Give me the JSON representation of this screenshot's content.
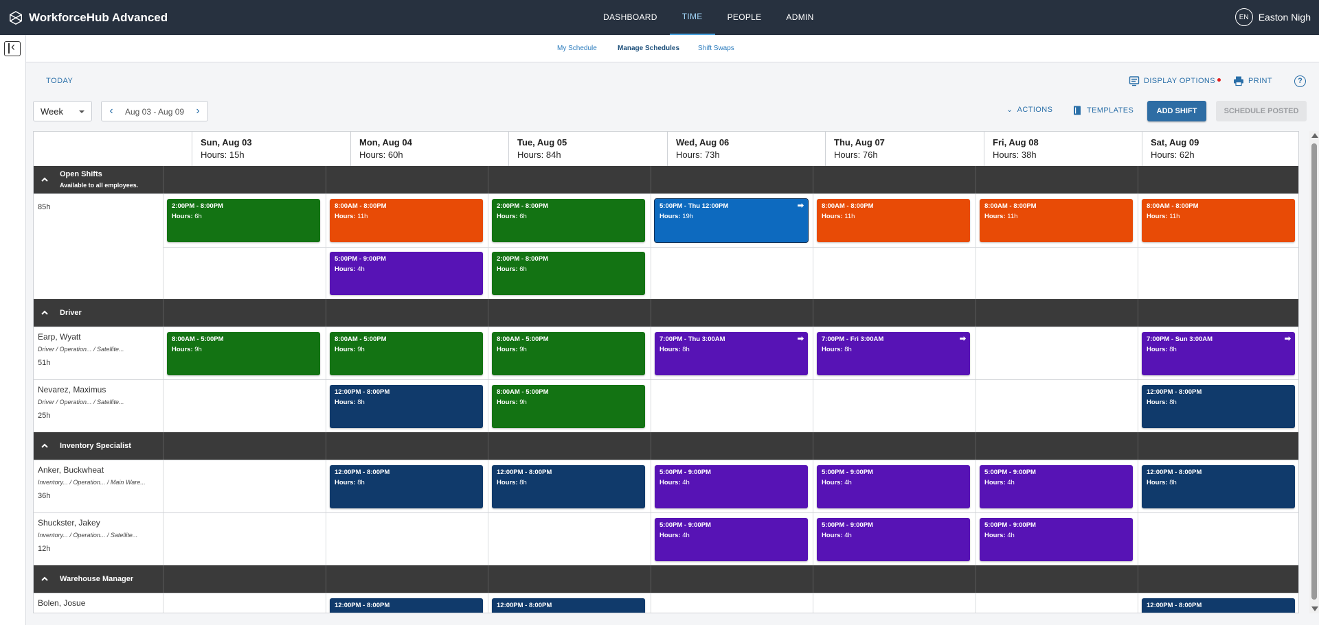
{
  "app": {
    "title": "WorkforceHub Advanced"
  },
  "topnav": [
    {
      "label": "DASHBOARD",
      "active": false
    },
    {
      "label": "TIME",
      "active": true
    },
    {
      "label": "PEOPLE",
      "active": false
    },
    {
      "label": "ADMIN",
      "active": false
    }
  ],
  "user": {
    "initials": "EN",
    "name": "Easton Nigh"
  },
  "subnav": [
    {
      "label": "My Schedule",
      "active": false
    },
    {
      "label": "Manage Schedules",
      "active": true
    },
    {
      "label": "Shift Swaps",
      "active": false
    }
  ],
  "toolbar": {
    "today": "TODAY",
    "display_options": "DISPLAY OPTIONS",
    "print": "PRINT",
    "view": "Week",
    "range": "Aug 03 - Aug 09",
    "actions": "ACTIONS",
    "templates": "TEMPLATES",
    "add_shift": "ADD SHIFT",
    "schedule_posted": "SCHEDULE POSTED"
  },
  "days": [
    {
      "name": "Sun, Aug 03",
      "hours": "Hours: 15h"
    },
    {
      "name": "Mon, Aug 04",
      "hours": "Hours: 60h"
    },
    {
      "name": "Tue, Aug 05",
      "hours": "Hours: 84h"
    },
    {
      "name": "Wed, Aug 06",
      "hours": "Hours: 73h"
    },
    {
      "name": "Thu, Aug 07",
      "hours": "Hours: 76h"
    },
    {
      "name": "Fri, Aug 08",
      "hours": "Hours: 38h"
    },
    {
      "name": "Sat, Aug 09",
      "hours": "Hours: 62h"
    }
  ],
  "hours_label": "Hours:",
  "colors": {
    "green": "#137313",
    "orange": "#e84b06",
    "purple": "#5713b5",
    "blue": "#0d6abf",
    "navy": "#103a6b"
  },
  "groups": [
    {
      "title": "Open Shifts",
      "subtitle": "Available to all employees.",
      "rows": [
        {
          "name": "",
          "role": "",
          "hours": "85h",
          "lanes": 2,
          "shifts": [
            {
              "day": 0,
              "lane": 0,
              "time": "2:00PM - 8:00PM",
              "hours": "6h",
              "color": "green"
            },
            {
              "day": 1,
              "lane": 0,
              "time": "8:00AM - 8:00PM",
              "hours": "11h",
              "color": "orange"
            },
            {
              "day": 2,
              "lane": 0,
              "time": "2:00PM - 8:00PM",
              "hours": "6h",
              "color": "green"
            },
            {
              "day": 3,
              "lane": 0,
              "time": "5:00PM - Thu 12:00PM",
              "hours": "19h",
              "color": "blue",
              "arrow": true,
              "selected": true
            },
            {
              "day": 4,
              "lane": 0,
              "time": "8:00AM - 8:00PM",
              "hours": "11h",
              "color": "orange"
            },
            {
              "day": 5,
              "lane": 0,
              "time": "8:00AM - 8:00PM",
              "hours": "11h",
              "color": "orange"
            },
            {
              "day": 6,
              "lane": 0,
              "time": "8:00AM - 8:00PM",
              "hours": "11h",
              "color": "orange"
            },
            {
              "day": 1,
              "lane": 1,
              "time": "5:00PM - 9:00PM",
              "hours": "4h",
              "color": "purple"
            },
            {
              "day": 2,
              "lane": 1,
              "time": "2:00PM - 8:00PM",
              "hours": "6h",
              "color": "green"
            }
          ]
        }
      ]
    },
    {
      "title": "Driver",
      "subtitle": "",
      "rows": [
        {
          "name": "Earp, Wyatt",
          "role": "Driver / Operation... / Satellite...",
          "hours": "51h",
          "lanes": 1,
          "shifts": [
            {
              "day": 0,
              "lane": 0,
              "time": "8:00AM - 5:00PM",
              "hours": "9h",
              "color": "green"
            },
            {
              "day": 1,
              "lane": 0,
              "time": "8:00AM - 5:00PM",
              "hours": "9h",
              "color": "green"
            },
            {
              "day": 2,
              "lane": 0,
              "time": "8:00AM - 5:00PM",
              "hours": "9h",
              "color": "green"
            },
            {
              "day": 3,
              "lane": 0,
              "time": "7:00PM - Thu 3:00AM",
              "hours": "8h",
              "color": "purple",
              "arrow": true
            },
            {
              "day": 4,
              "lane": 0,
              "time": "7:00PM - Fri 3:00AM",
              "hours": "8h",
              "color": "purple",
              "arrow": true
            },
            {
              "day": 6,
              "lane": 0,
              "time": "7:00PM - Sun 3:00AM",
              "hours": "8h",
              "color": "purple",
              "arrow": true
            }
          ]
        },
        {
          "name": "Nevarez, Maximus",
          "role": "Driver / Operation... / Satellite...",
          "hours": "25h",
          "lanes": 1,
          "shifts": [
            {
              "day": 1,
              "lane": 0,
              "time": "12:00PM - 8:00PM",
              "hours": "8h",
              "color": "navy"
            },
            {
              "day": 2,
              "lane": 0,
              "time": "8:00AM - 5:00PM",
              "hours": "9h",
              "color": "green"
            },
            {
              "day": 6,
              "lane": 0,
              "time": "12:00PM - 8:00PM",
              "hours": "8h",
              "color": "navy"
            }
          ]
        }
      ]
    },
    {
      "title": "Inventory Specialist",
      "subtitle": "",
      "rows": [
        {
          "name": "Anker, Buckwheat",
          "role": "Inventory... / Operation... / Main Ware...",
          "hours": "36h",
          "lanes": 1,
          "shifts": [
            {
              "day": 1,
              "lane": 0,
              "time": "12:00PM - 8:00PM",
              "hours": "8h",
              "color": "navy"
            },
            {
              "day": 2,
              "lane": 0,
              "time": "12:00PM - 8:00PM",
              "hours": "8h",
              "color": "navy"
            },
            {
              "day": 3,
              "lane": 0,
              "time": "5:00PM - 9:00PM",
              "hours": "4h",
              "color": "purple"
            },
            {
              "day": 4,
              "lane": 0,
              "time": "5:00PM - 9:00PM",
              "hours": "4h",
              "color": "purple"
            },
            {
              "day": 5,
              "lane": 0,
              "time": "5:00PM - 9:00PM",
              "hours": "4h",
              "color": "purple"
            },
            {
              "day": 6,
              "lane": 0,
              "time": "12:00PM - 8:00PM",
              "hours": "8h",
              "color": "navy"
            }
          ]
        },
        {
          "name": "Shuckster, Jakey",
          "role": "Inventory... / Operation... / Satellite...",
          "hours": "12h",
          "lanes": 1,
          "shifts": [
            {
              "day": 3,
              "lane": 0,
              "time": "5:00PM - 9:00PM",
              "hours": "4h",
              "color": "purple"
            },
            {
              "day": 4,
              "lane": 0,
              "time": "5:00PM - 9:00PM",
              "hours": "4h",
              "color": "purple"
            },
            {
              "day": 5,
              "lane": 0,
              "time": "5:00PM - 9:00PM",
              "hours": "4h",
              "color": "purple"
            }
          ]
        }
      ]
    },
    {
      "title": "Warehouse Manager",
      "subtitle": "",
      "rows": [
        {
          "name": "Bolen, Josue",
          "role": "",
          "hours": "",
          "lanes": 1,
          "shifts": [
            {
              "day": 1,
              "lane": 0,
              "time": "12:00PM - 8:00PM",
              "hours": "",
              "color": "navy"
            },
            {
              "day": 2,
              "lane": 0,
              "time": "12:00PM - 8:00PM",
              "hours": "",
              "color": "navy"
            },
            {
              "day": 6,
              "lane": 0,
              "time": "12:00PM - 8:00PM",
              "hours": "",
              "color": "navy"
            }
          ]
        }
      ]
    }
  ]
}
